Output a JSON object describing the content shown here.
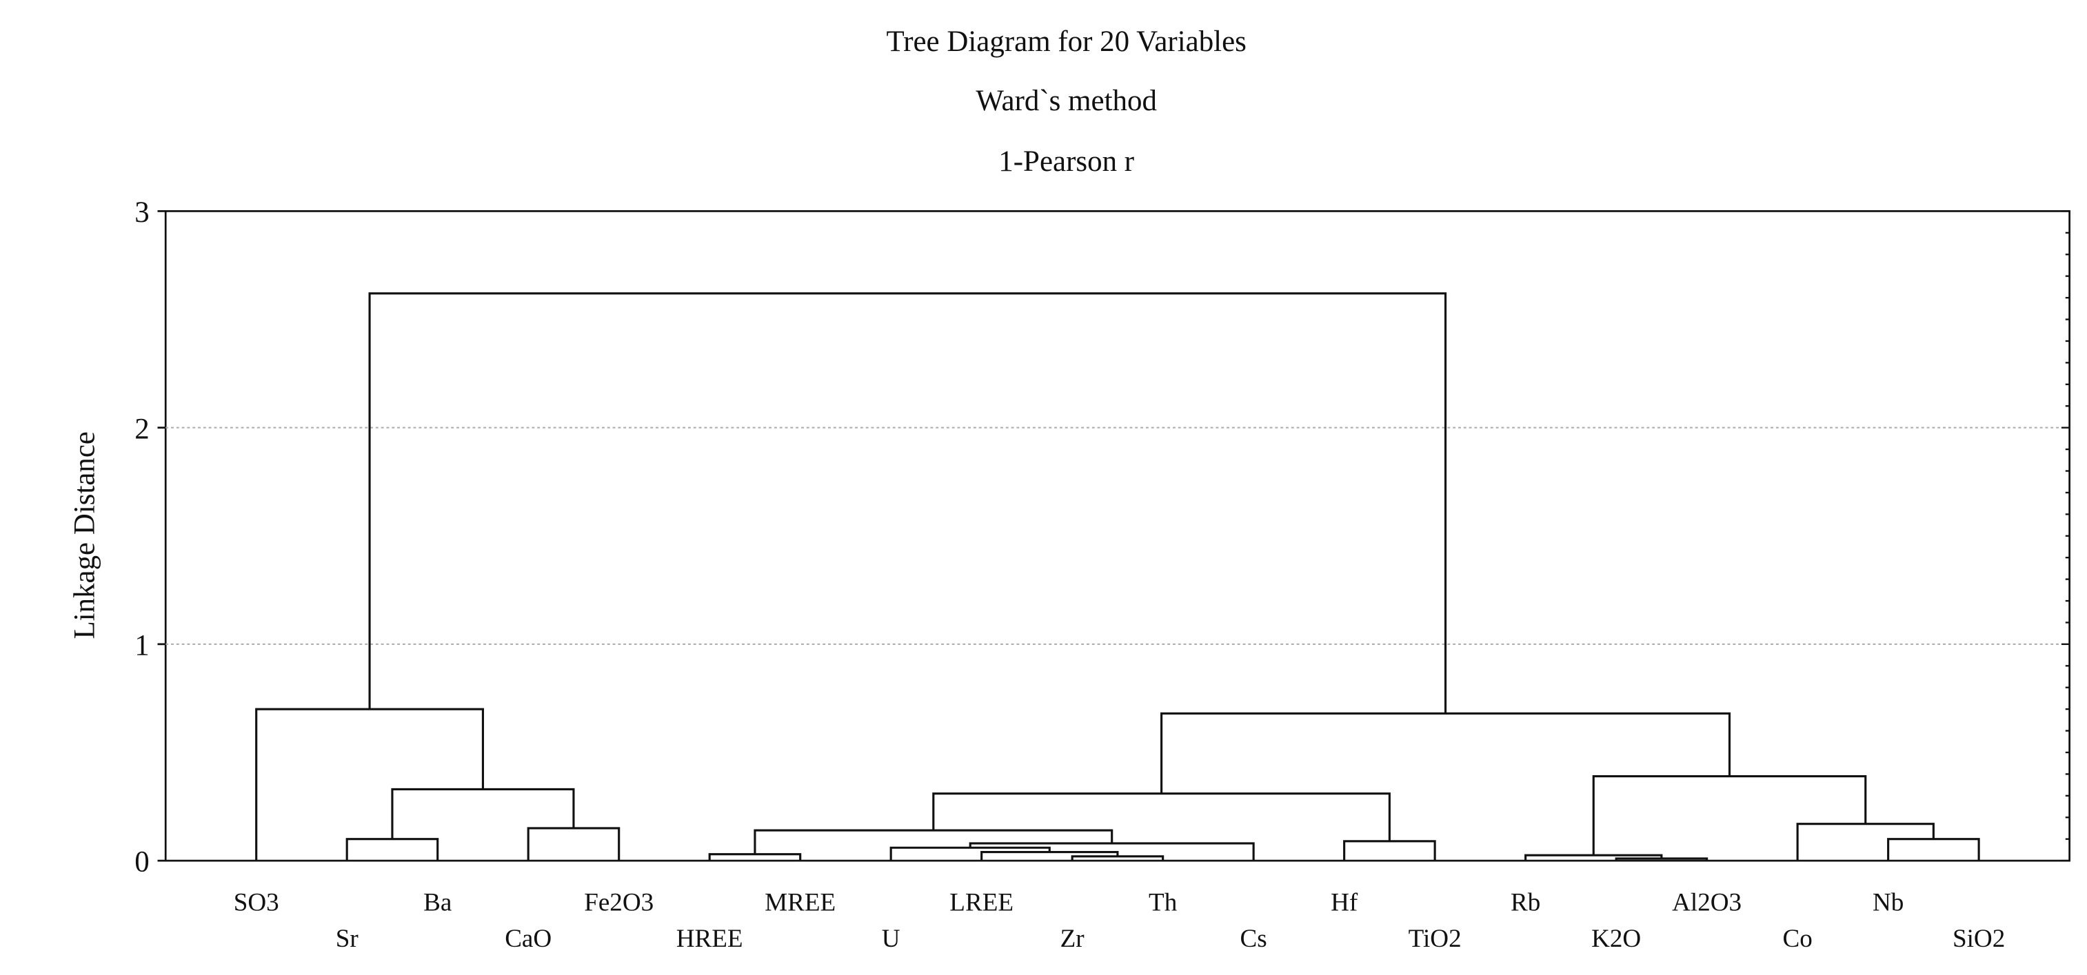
{
  "chart_data": {
    "type": "dendrogram",
    "title": [
      "Tree Diagram for 20 Variables",
      "Ward`s method",
      "1-Pearson r"
    ],
    "xlabel": "",
    "ylabel": "Linkage Distance",
    "ylim": [
      0,
      3
    ],
    "yticks": [
      "0",
      "1",
      "2",
      "3"
    ],
    "grid": "horizontal dotted at 1 and 2",
    "leaves": [
      "SO3",
      "Sr",
      "Ba",
      "CaO",
      "Fe2O3",
      "HREE",
      "MREE",
      "U",
      "LREE",
      "Zr",
      "Th",
      "Cs",
      "Hf",
      "TiO2",
      "Rb",
      "K2O",
      "Al2O3",
      "Co",
      "Nb",
      "SiO2"
    ],
    "merges": [
      [
        1,
        2,
        0.1
      ],
      [
        3,
        4,
        0.15
      ],
      [
        20,
        21,
        0.33
      ],
      [
        0,
        22,
        0.7
      ],
      [
        5,
        6,
        0.03
      ],
      [
        9,
        10,
        0.02
      ],
      [
        8,
        25,
        0.04
      ],
      [
        7,
        26,
        0.06
      ],
      [
        27,
        11,
        0.08
      ],
      [
        24,
        28,
        0.14
      ],
      [
        12,
        13,
        0.09
      ],
      [
        29,
        30,
        0.31
      ],
      [
        15,
        16,
        0.01
      ],
      [
        14,
        32,
        0.025
      ],
      [
        18,
        19,
        0.1
      ],
      [
        17,
        34,
        0.17
      ],
      [
        33,
        35,
        0.39
      ],
      [
        31,
        36,
        0.68
      ],
      [
        23,
        37,
        2.62
      ]
    ]
  }
}
